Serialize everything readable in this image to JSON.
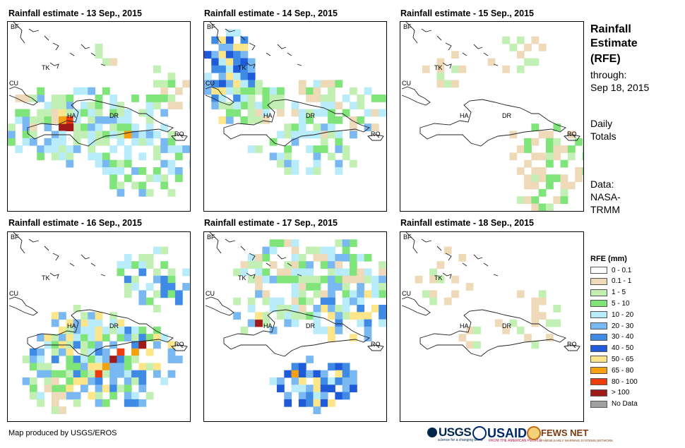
{
  "panels": [
    {
      "title": "Rainfall estimate - 13 Sep., 2015"
    },
    {
      "title": "Rainfall estimate - 14 Sep., 2015"
    },
    {
      "title": "Rainfall estimate - 15 Sep., 2015"
    },
    {
      "title": "Rainfall estimate - 16 Sep., 2015"
    },
    {
      "title": "Rainfall estimate - 17 Sep., 2015"
    },
    {
      "title": "Rainfall estimate - 18 Sep., 2015"
    }
  ],
  "map_labels": {
    "bf": "BF",
    "cu": "CU",
    "ha": "HA",
    "dr": "DR",
    "rq": "RQ",
    "tk": "TK"
  },
  "sidebar": {
    "heading_1": "Rainfall",
    "heading_2": "Estimate",
    "heading_3": "(RFE)",
    "through_label": "through:",
    "through_date": "Sep 18, 2015",
    "totals_1": "Daily",
    "totals_2": "Totals",
    "data_1": "Data:",
    "data_2": "NASA-",
    "data_3": "TRMM"
  },
  "legend": {
    "title": "RFE (mm)",
    "items": [
      {
        "label": "0 - 0.1",
        "color": "#ffffff"
      },
      {
        "label": "0.1 - 1",
        "color": "#eed9b9"
      },
      {
        "label": "1 - 5",
        "color": "#c2f0b4"
      },
      {
        "label": "5 - 10",
        "color": "#7fe57b"
      },
      {
        "label": "10 - 20",
        "color": "#b8ecfa"
      },
      {
        "label": "20 - 30",
        "color": "#7ab8f2"
      },
      {
        "label": "30 - 40",
        "color": "#3f8ae5"
      },
      {
        "label": "40 - 50",
        "color": "#1f5ad8"
      },
      {
        "label": "50 - 65",
        "color": "#fde68a"
      },
      {
        "label": "65 - 80",
        "color": "#f5a00f"
      },
      {
        "label": "80 - 100",
        "color": "#f03c0c"
      },
      {
        "label": "> 100",
        "color": "#a01a1a"
      },
      {
        "label": "No Data",
        "color": "#a0a0a0"
      }
    ]
  },
  "footer": {
    "credit": "Map produced by USGS/EROS",
    "usgs": "USGS",
    "usgs_tagline": "science for a changing world",
    "usaid": "USAID",
    "usaid_tagline": "FROM THE AMERICAN PEOPLE",
    "fews": "FEWS NET",
    "fews_tagline": "FAMINE EARLY WARNING SYSTEMS NETWORK"
  }
}
